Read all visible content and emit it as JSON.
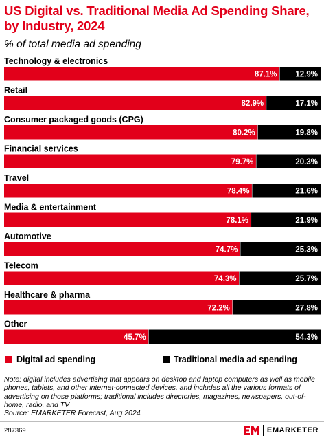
{
  "header": {
    "title": "US Digital vs. Traditional Media Ad Spending Share, by Industry, 2024",
    "subtitle": "% of total media ad spending"
  },
  "colors": {
    "digital": "#E2001A",
    "traditional": "#000000",
    "title": "#E2001A"
  },
  "chart_data": {
    "type": "bar",
    "orientation": "horizontal",
    "stacked": true,
    "categories": [
      "Technology & electronics",
      "Retail",
      "Consumer packaged goods (CPG)",
      "Financial services",
      "Travel",
      "Media & entertainment",
      "Automotive",
      "Telecom",
      "Healthcare & pharma",
      "Other"
    ],
    "series": [
      {
        "name": "Digital ad spending",
        "values": [
          87.1,
          82.9,
          80.2,
          79.7,
          78.4,
          78.1,
          74.7,
          74.3,
          72.2,
          45.7
        ],
        "labels": [
          "87.1%",
          "82.9%",
          "80.2%",
          "79.7%",
          "78.4%",
          "78.1%",
          "74.7%",
          "74.3%",
          "72.2%",
          "45.7%"
        ]
      },
      {
        "name": "Traditional media ad spending",
        "values": [
          12.9,
          17.1,
          19.8,
          20.3,
          21.6,
          21.9,
          25.3,
          25.7,
          27.8,
          54.3
        ],
        "labels": [
          "12.9%",
          "17.1%",
          "19.8%",
          "20.3%",
          "21.6%",
          "21.9%",
          "25.3%",
          "25.7%",
          "27.8%",
          "54.3%"
        ]
      }
    ],
    "xlim": [
      0,
      100
    ],
    "legend_position": "bottom"
  },
  "note": "Note: digital includes advertising that appears on desktop and laptop computers as well as mobile phones, tablets, and other internet-connected devices, and includes all the various formats of advertising on those platforms; traditional includes directories, magazines, newspapers, out-of-home, radio, and TV",
  "source": "Source: EMARKETER Forecast, Aug 2024",
  "footer": {
    "chart_id": "287369",
    "brand": "EMARKETER",
    "brand_icon": "em-logo-icon"
  }
}
